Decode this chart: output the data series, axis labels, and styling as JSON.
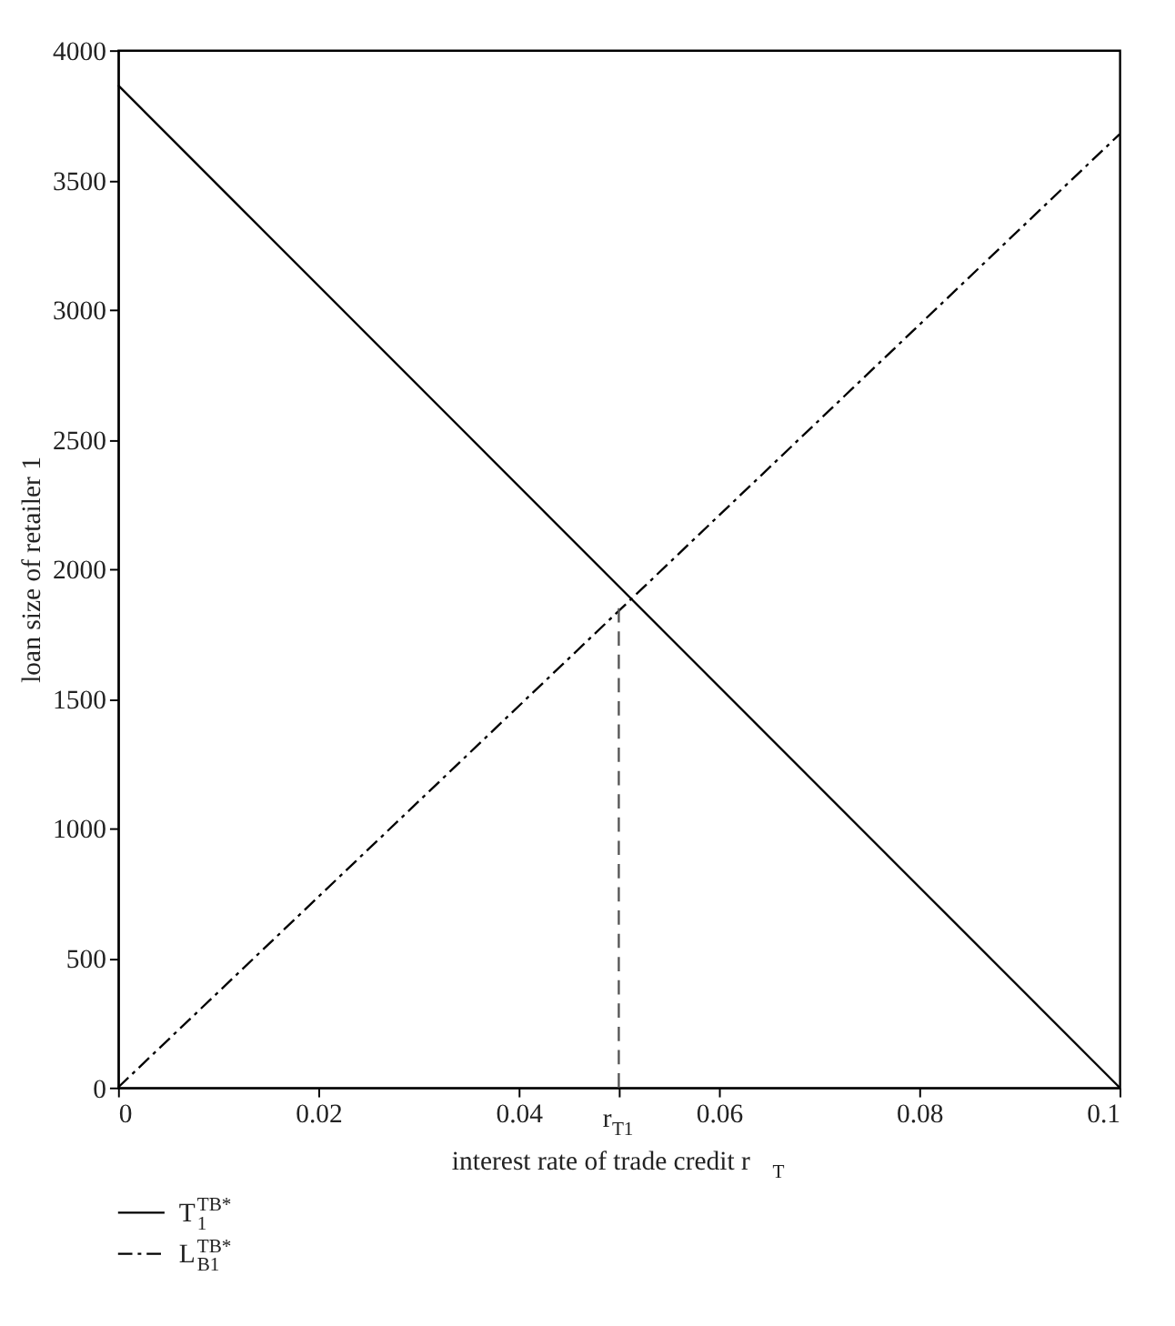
{
  "chart_data": {
    "type": "line",
    "xlabel": "interest rate of trade credit r$_{T}$",
    "ylabel": "loan size of retailer 1",
    "xlim": [
      0,
      0.1
    ],
    "ylim": [
      0,
      4000
    ],
    "xticks": [
      0,
      0.02,
      0.04,
      {
        "value": 0.05,
        "label": "r$_{T1}$"
      },
      0.06,
      0.08,
      0.1
    ],
    "yticks": [
      0,
      500,
      1000,
      1500,
      2000,
      2500,
      3000,
      3500,
      4000
    ],
    "grid": false,
    "legend": "bottom left",
    "marker": "none",
    "series": [
      {
        "name": "T$_{1}$$^{TB*}$",
        "color": "#000000",
        "x": [
          0,
          0.1
        ],
        "values": [
          3865,
          0
        ],
        "line_style": "solid"
      },
      {
        "name": "L$_{B1}$$^{TB*}$",
        "color": "#000000",
        "x": [
          0,
          0.1
        ],
        "values": [
          0,
          3676
        ],
        "line_style": "dashdot"
      },
      {
        "color": "#555555",
        "x": [
          0.05,
          0.05
        ],
        "values": [
          0,
          1860
        ],
        "line_style": "dashed"
      }
    ]
  }
}
